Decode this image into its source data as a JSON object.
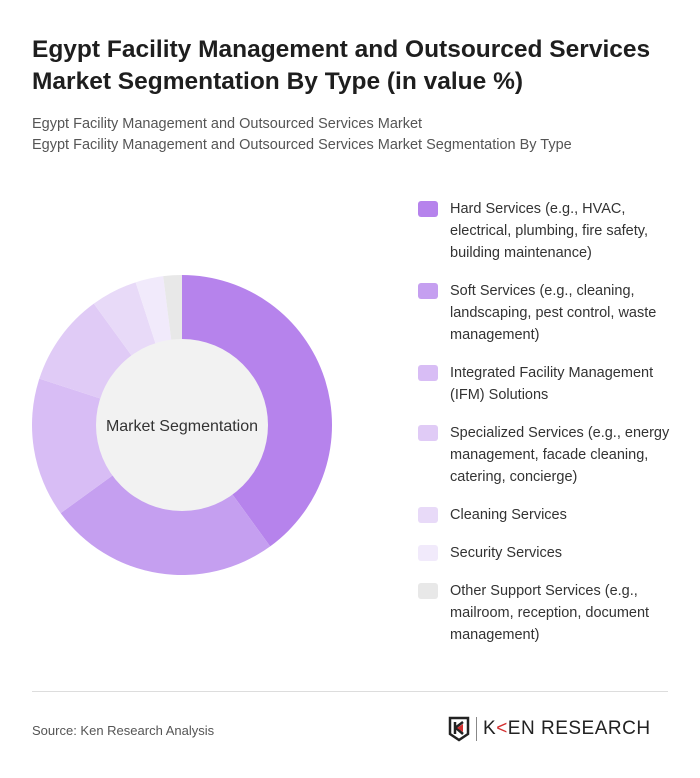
{
  "header": {
    "title": "Egypt Facility Management and Outsourced Services Market Segmentation By Type (in value %)",
    "subtitle_1": "Egypt Facility Management and Outsourced Services Market",
    "subtitle_2": "Egypt Facility Management and Outsourced Services Market Segmentation By Type"
  },
  "chart_data": {
    "type": "pie",
    "variant": "donut",
    "center_label": "Market Segmentation",
    "legend_position": "right",
    "categories": [
      "Hard Services (e.g., HVAC, electrical, plumbing, fire safety, building maintenance)",
      "Soft Services (e.g., cleaning, landscaping, pest control, waste management)",
      "Integrated Facility Management (IFM) Solutions",
      "Specialized Services (e.g., energy management, facade cleaning, catering, concierge)",
      "Cleaning Services",
      "Security Services",
      "Other Support Services (e.g., mailroom, reception, document management)"
    ],
    "values": [
      40,
      25,
      15,
      10,
      5,
      3,
      2
    ],
    "colors": [
      "#b683ec",
      "#c59ff0",
      "#d8bdf5",
      "#e0cbf6",
      "#e8daf8",
      "#f1eafb",
      "#e8e8e8"
    ]
  },
  "footer": {
    "source": "Source: Ken Research Analysis",
    "logo_text": "KEN RESEARCH"
  }
}
